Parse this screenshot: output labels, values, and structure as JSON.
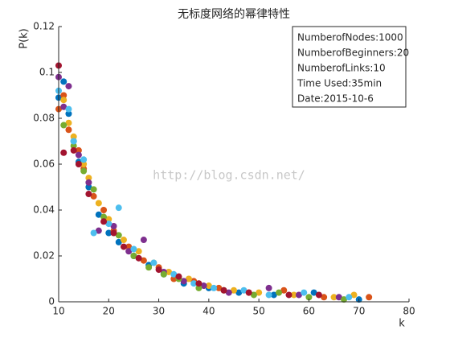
{
  "chart_data": {
    "type": "scatter",
    "title": "无标度网络的幂律特性",
    "x_label": "k",
    "y_label": "P(k)",
    "watermark": "http://blog.csdn.net/",
    "annotation": [
      "NumberofNodes:1000",
      "NumberofBeginners:20",
      "NumberofLinks:10",
      "Time Used:35min",
      "Date:2015-10-6"
    ],
    "xlim": [
      10,
      80
    ],
    "xticks": [
      10,
      20,
      30,
      40,
      50,
      60,
      70,
      80
    ],
    "ylim": [
      0,
      0.12
    ],
    "yticks": [
      0,
      0.02,
      0.04,
      0.06,
      0.08,
      0.1,
      0.12
    ],
    "series": [
      {
        "color": "#0072bd",
        "x": [
          10,
          11,
          12,
          13,
          14,
          16,
          18,
          20,
          22,
          25,
          28,
          31,
          35,
          40,
          46,
          53,
          61,
          70
        ],
        "values": [
          0.089,
          0.096,
          0.082,
          0.07,
          0.061,
          0.05,
          0.038,
          0.03,
          0.026,
          0.02,
          0.016,
          0.012,
          0.008,
          0.006,
          0.004,
          0.003,
          0.004,
          0.001
        ]
      },
      {
        "color": "#d95319",
        "x": [
          10,
          11,
          12,
          14,
          15,
          17,
          19,
          21,
          24,
          27,
          30,
          33,
          37,
          42,
          48,
          55,
          63,
          72
        ],
        "values": [
          0.084,
          0.09,
          0.075,
          0.066,
          0.058,
          0.046,
          0.04,
          0.031,
          0.024,
          0.018,
          0.015,
          0.01,
          0.009,
          0.006,
          0.004,
          0.005,
          0.002,
          0.002
        ]
      },
      {
        "color": "#edb120",
        "x": [
          11,
          12,
          13,
          15,
          16,
          18,
          20,
          23,
          26,
          29,
          32,
          36,
          40,
          45,
          50,
          57,
          65,
          69
        ],
        "values": [
          0.088,
          0.078,
          0.072,
          0.06,
          0.054,
          0.043,
          0.036,
          0.027,
          0.022,
          0.017,
          0.013,
          0.01,
          0.007,
          0.005,
          0.004,
          0.003,
          0.002,
          0.003
        ]
      },
      {
        "color": "#7e2f8e",
        "x": [
          10,
          11,
          12,
          14,
          16,
          18,
          21,
          24,
          27,
          31,
          35,
          39,
          44,
          52,
          58,
          66
        ],
        "values": [
          0.098,
          0.085,
          0.094,
          0.064,
          0.052,
          0.031,
          0.033,
          0.022,
          0.027,
          0.013,
          0.009,
          0.007,
          0.004,
          0.006,
          0.003,
          0.002
        ]
      },
      {
        "color": "#77ac30",
        "x": [
          11,
          13,
          15,
          17,
          19,
          22,
          25,
          28,
          31,
          34,
          38,
          43,
          49,
          54,
          60,
          67
        ],
        "values": [
          0.077,
          0.068,
          0.057,
          0.049,
          0.037,
          0.029,
          0.02,
          0.015,
          0.012,
          0.01,
          0.006,
          0.005,
          0.003,
          0.004,
          0.002,
          0.001
        ]
      },
      {
        "color": "#4dbeee",
        "x": [
          10,
          12,
          13,
          15,
          17,
          20,
          22,
          25,
          29,
          33,
          37,
          41,
          47,
          52,
          59,
          68
        ],
        "values": [
          0.092,
          0.084,
          0.07,
          0.062,
          0.03,
          0.034,
          0.041,
          0.023,
          0.017,
          0.012,
          0.008,
          0.006,
          0.005,
          0.003,
          0.004,
          0.002
        ]
      },
      {
        "color": "#a2142f",
        "x": [
          10,
          11,
          13,
          14,
          16,
          19,
          21,
          23,
          26,
          30,
          34,
          38,
          43,
          48,
          56,
          62
        ],
        "values": [
          0.103,
          0.065,
          0.066,
          0.06,
          0.047,
          0.035,
          0.03,
          0.024,
          0.019,
          0.014,
          0.011,
          0.008,
          0.005,
          0.004,
          0.003,
          0.003
        ]
      }
    ]
  }
}
